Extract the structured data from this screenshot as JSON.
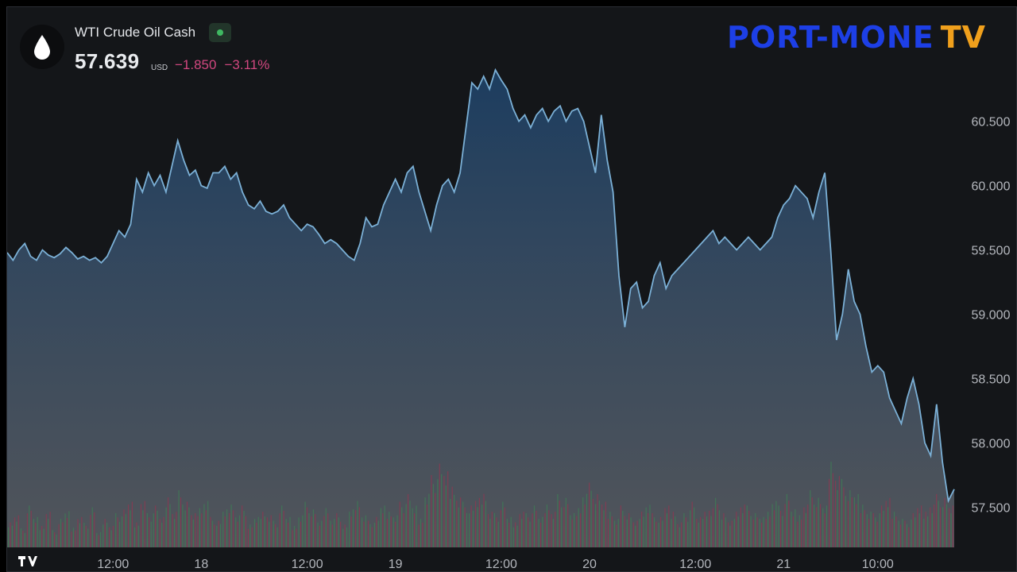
{
  "header": {
    "symbol_name": "WTI Crude Oil Cash",
    "price": "57.639",
    "currency": "USD",
    "change_abs": "−1.850",
    "change_pct": "−3.11%",
    "status": "live-dot-green"
  },
  "logo": {
    "text_main": "PORT-MONE",
    "text_tv": "TV"
  },
  "colors": {
    "line": "#7bb0d6",
    "negative": "#d1477f",
    "background": "#141619",
    "vol_up": "#3f7a56",
    "vol_down": "#8a3a52"
  },
  "chart_data": {
    "type": "area",
    "series": [
      {
        "values": [
          59.48,
          59.42,
          59.5,
          59.55,
          59.45,
          59.42,
          59.5,
          59.46,
          59.44,
          59.47,
          59.52,
          59.48,
          59.43,
          59.45,
          59.42,
          59.44,
          59.4,
          59.45,
          59.55,
          59.65,
          59.6,
          59.7,
          60.05,
          59.95,
          60.1,
          60.0,
          60.08,
          59.95,
          60.15,
          60.35,
          60.2,
          60.08,
          60.12,
          60.0,
          59.98,
          60.1,
          60.1,
          60.15,
          60.05,
          60.1,
          59.95,
          59.85,
          59.82,
          59.88,
          59.8,
          59.78,
          59.8,
          59.85,
          59.75,
          59.7,
          59.65,
          59.7,
          59.68,
          59.62,
          59.55,
          59.58,
          59.55,
          59.5,
          59.45,
          59.42,
          59.55,
          59.75,
          59.68,
          59.7,
          59.85,
          59.95,
          60.05,
          59.95,
          60.1,
          60.15,
          59.95,
          59.8,
          59.65,
          59.85,
          60.0,
          60.05,
          59.95,
          60.1,
          60.45,
          60.8,
          60.75,
          60.85,
          60.75,
          60.9,
          60.82,
          60.75,
          60.6,
          60.5,
          60.55,
          60.45,
          60.55,
          60.6,
          60.5,
          60.58,
          60.62,
          60.5,
          60.58,
          60.6,
          60.5,
          60.3,
          60.1,
          60.55,
          60.2,
          59.95,
          59.3,
          58.9,
          59.2,
          59.25,
          59.05,
          59.1,
          59.3,
          59.4,
          59.2,
          59.3,
          59.35,
          59.4,
          59.45,
          59.5,
          59.55,
          59.6,
          59.65,
          59.55,
          59.6,
          59.55,
          59.5,
          59.55,
          59.6,
          59.55,
          59.5,
          59.55,
          59.6,
          59.75,
          59.85,
          59.9,
          60.0,
          59.95,
          59.9,
          59.75,
          59.95,
          60.1,
          59.5,
          58.8,
          59.0,
          59.35,
          59.1,
          59.0,
          58.75,
          58.55,
          58.6,
          58.55,
          58.35,
          58.25,
          58.15,
          58.35,
          58.5,
          58.3,
          58.0,
          57.9,
          58.3,
          57.85,
          57.55,
          57.64
        ]
      }
    ],
    "y_ticks": [
      "60.500",
      "60.000",
      "59.500",
      "59.000",
      "58.500",
      "58.000",
      "57.500"
    ],
    "y_tick_values": [
      60.5,
      60.0,
      59.5,
      59.0,
      58.5,
      58.0,
      57.5
    ],
    "ylim": [
      57.2,
      61.4
    ],
    "x_tick_labels": [
      "12:00",
      "18",
      "12:00",
      "19",
      "12:00",
      "20",
      "12:00",
      "21",
      "10:00"
    ],
    "x_tick_index": [
      18,
      33,
      51,
      66,
      84,
      99,
      117,
      132,
      148
    ],
    "grid": false,
    "volume": {
      "values": [
        14,
        18,
        10,
        22,
        16,
        12,
        20,
        9,
        15,
        19,
        11,
        17,
        13,
        21,
        8,
        16,
        12,
        18,
        20,
        24,
        14,
        26,
        18,
        22,
        16,
        28,
        20,
        30,
        24,
        18,
        22,
        26,
        16,
        14,
        20,
        24,
        18,
        22,
        12,
        16,
        20,
        18,
        14,
        22,
        16,
        12,
        18,
        24,
        20,
        14,
        22,
        16,
        18,
        12,
        20,
        26,
        18,
        14,
        16,
        22,
        20,
        18,
        24,
        28,
        22,
        16,
        30,
        38,
        44,
        40,
        34,
        28,
        24,
        22,
        26,
        30,
        20,
        18,
        24,
        16,
        14,
        20,
        18,
        22,
        16,
        24,
        20,
        28,
        26,
        18,
        22,
        30,
        34,
        28,
        24,
        20,
        16,
        22,
        18,
        14,
        20,
        24,
        18,
        16,
        22,
        20,
        14,
        18,
        24,
        16,
        20,
        22,
        26,
        18,
        14,
        20,
        24,
        22,
        18,
        16,
        20,
        26,
        22,
        28,
        20,
        18,
        24,
        30,
        26,
        22,
        48,
        40,
        36,
        30,
        28,
        24,
        20,
        18,
        22,
        26,
        20,
        16,
        14,
        18,
        22,
        20,
        24,
        28,
        26,
        22
      ],
      "up": [
        1,
        0,
        1,
        0,
        1,
        1,
        0,
        1,
        0,
        1,
        0,
        0,
        1,
        0,
        1,
        1,
        0,
        1,
        1,
        0,
        1,
        0,
        1,
        1,
        0,
        1,
        0,
        1,
        1,
        0,
        0,
        1,
        0,
        1,
        1,
        0,
        1,
        0,
        0,
        1,
        1,
        0,
        1,
        0,
        1,
        0,
        1,
        1,
        0,
        1,
        0,
        1,
        0,
        1,
        1,
        0,
        1,
        0,
        1,
        1,
        0,
        1,
        0,
        1,
        1,
        0,
        1,
        0,
        1,
        0,
        1,
        0,
        1,
        1,
        0,
        1,
        0,
        1,
        0,
        1,
        1,
        0,
        1,
        0,
        1,
        0,
        0,
        1,
        0,
        1,
        0,
        1,
        0,
        1,
        0,
        0,
        1,
        0,
        1,
        0,
        1,
        1,
        0,
        1,
        0,
        1,
        0,
        1,
        1,
        0,
        1,
        0,
        1,
        1,
        0,
        1,
        0,
        1,
        0,
        1,
        0,
        1,
        1,
        0,
        1,
        0,
        0,
        1,
        0,
        1,
        0,
        0,
        1,
        0,
        1,
        0,
        1,
        0,
        1,
        0,
        0,
        1,
        0,
        1,
        0,
        1,
        0,
        0,
        1,
        0
      ]
    }
  }
}
